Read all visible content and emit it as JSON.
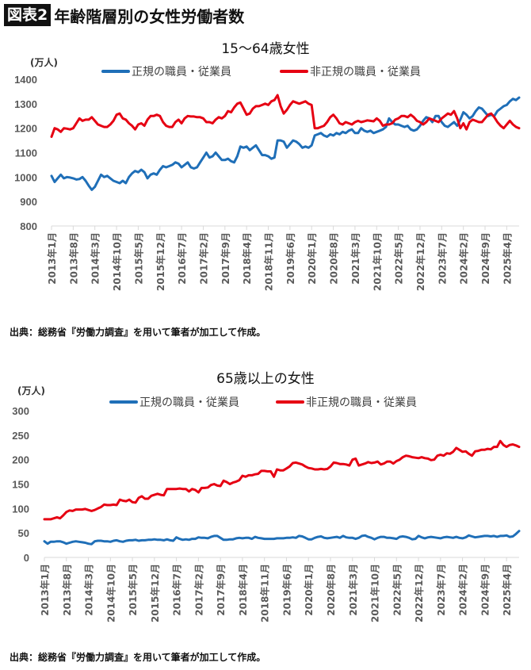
{
  "header": {
    "badge": "図表2",
    "title": "年齢階層別の女性労働者数"
  },
  "source_note": "出典：総務省『労働力調査』を用いて筆者が加工して作成。",
  "colors": {
    "regular": "#1f6fb8",
    "non_regular": "#e60012",
    "axis_text": "#595959"
  },
  "x_tick_labels": [
    "2013年1月",
    "2013年8月",
    "2014年3月",
    "2014年10月",
    "2015年5月",
    "2015年12月",
    "2016年7月",
    "2017年2月",
    "2017年9月",
    "2018年4月",
    "2018年11月",
    "2019年6月",
    "2020年1月",
    "2020年8月",
    "2021年3月",
    "2021年10月",
    "2022年5月",
    "2022年12月",
    "2023年7月",
    "2024年2月",
    "2024年9月",
    "2025年4月"
  ],
  "chart_data": [
    {
      "type": "line",
      "title": "15〜64歳女性",
      "ylabel": "(万人)",
      "x_start": "2013-01",
      "x_end": "2025-08",
      "x_step_months": 1,
      "ylim": [
        800,
        1400
      ],
      "yticks": [
        800,
        900,
        1000,
        1100,
        1200,
        1300,
        1400
      ],
      "grid": false,
      "legend": "top",
      "series": [
        {
          "name": "正規の職員・従業員",
          "color": "#1f6fb8",
          "values": [
            1005,
            980,
            995,
            1010,
            995,
            1000,
            998,
            995,
            990,
            992,
            1000,
            985,
            965,
            948,
            960,
            985,
            1010,
            1000,
            1005,
            995,
            985,
            980,
            975,
            985,
            975,
            1000,
            1015,
            1025,
            1020,
            1030,
            1020,
            995,
            1010,
            1015,
            1010,
            1030,
            1045,
            1040,
            1045,
            1050,
            1060,
            1055,
            1040,
            1050,
            1060,
            1040,
            1035,
            1040,
            1060,
            1080,
            1100,
            1080,
            1085,
            1100,
            1085,
            1070,
            1070,
            1075,
            1065,
            1060,
            1085,
            1125,
            1120,
            1125,
            1110,
            1120,
            1130,
            1110,
            1090,
            1090,
            1085,
            1075,
            1080,
            1150,
            1150,
            1145,
            1120,
            1135,
            1150,
            1145,
            1135,
            1120,
            1125,
            1120,
            1130,
            1170,
            1175,
            1180,
            1170,
            1165,
            1175,
            1170,
            1180,
            1175,
            1185,
            1180,
            1190,
            1195,
            1180,
            1180,
            1200,
            1190,
            1185,
            1190,
            1180,
            1185,
            1190,
            1195,
            1205,
            1240,
            1225,
            1215,
            1215,
            1210,
            1205,
            1210,
            1195,
            1190,
            1195,
            1210,
            1230,
            1245,
            1240,
            1225,
            1250,
            1250,
            1225,
            1210,
            1205,
            1215,
            1225,
            1210,
            1235,
            1265,
            1255,
            1240,
            1250,
            1270,
            1285,
            1280,
            1265,
            1250,
            1255,
            1250,
            1270,
            1280,
            1290,
            1295,
            1310,
            1320,
            1315,
            1325
          ]
        },
        {
          "name": "非正規の職員・従業員",
          "color": "#e60012",
          "values": [
            1165,
            1200,
            1195,
            1185,
            1200,
            1198,
            1195,
            1200,
            1220,
            1240,
            1230,
            1235,
            1235,
            1245,
            1230,
            1215,
            1210,
            1205,
            1205,
            1215,
            1230,
            1255,
            1260,
            1240,
            1235,
            1220,
            1210,
            1195,
            1215,
            1220,
            1210,
            1235,
            1250,
            1250,
            1255,
            1250,
            1225,
            1210,
            1205,
            1205,
            1225,
            1235,
            1220,
            1240,
            1250,
            1248,
            1248,
            1245,
            1245,
            1240,
            1225,
            1225,
            1220,
            1235,
            1245,
            1240,
            1250,
            1270,
            1265,
            1285,
            1300,
            1305,
            1280,
            1255,
            1260,
            1280,
            1290,
            1290,
            1295,
            1300,
            1295,
            1310,
            1315,
            1335,
            1290,
            1260,
            1275,
            1295,
            1310,
            1305,
            1300,
            1305,
            1310,
            1300,
            1295,
            1200,
            1200,
            1205,
            1210,
            1225,
            1245,
            1255,
            1240,
            1220,
            1215,
            1225,
            1220,
            1215,
            1225,
            1230,
            1225,
            1228,
            1232,
            1230,
            1228,
            1240,
            1230,
            1210,
            1215,
            1215,
            1220,
            1235,
            1240,
            1250,
            1250,
            1245,
            1255,
            1245,
            1230,
            1225,
            1215,
            1225,
            1240,
            1235,
            1230,
            1225,
            1240,
            1250,
            1260,
            1255,
            1270,
            1240,
            1200,
            1220,
            1195,
            1225,
            1235,
            1230,
            1225,
            1225,
            1240,
            1255,
            1260,
            1245,
            1225,
            1210,
            1200,
            1215,
            1230,
            1215,
            1205,
            1200
          ]
        }
      ]
    },
    {
      "type": "line",
      "title": "65歳以上の女性",
      "ylabel": "(万人)",
      "x_start": "2013-01",
      "x_end": "2025-08",
      "x_step_months": 1,
      "ylim": [
        0,
        300
      ],
      "yticks": [
        0,
        50,
        100,
        150,
        200,
        250,
        300
      ],
      "grid": false,
      "legend": "top",
      "series": [
        {
          "name": "正規の職員・従業員",
          "color": "#1f6fb8",
          "values": [
            33,
            28,
            32,
            32,
            33,
            33,
            31,
            28,
            30,
            32,
            33,
            32,
            31,
            30,
            28,
            27,
            33,
            34,
            34,
            33,
            33,
            32,
            34,
            35,
            33,
            32,
            34,
            35,
            35,
            36,
            34,
            35,
            35,
            36,
            36,
            37,
            36,
            36,
            35,
            37,
            35,
            34,
            41,
            38,
            36,
            37,
            36,
            38,
            38,
            41,
            40,
            40,
            39,
            42,
            44,
            44,
            40,
            36,
            36,
            37,
            37,
            39,
            40,
            39,
            40,
            40,
            38,
            42,
            40,
            39,
            38,
            38,
            38,
            38,
            39,
            39,
            39,
            40,
            40,
            41,
            40,
            44,
            43,
            40,
            37,
            37,
            40,
            42,
            43,
            40,
            39,
            40,
            41,
            42,
            40,
            44,
            41,
            40,
            40,
            38,
            40,
            44,
            45,
            42,
            40,
            37,
            40,
            42,
            42,
            40,
            40,
            39,
            38,
            42,
            43,
            42,
            40,
            37,
            38,
            44,
            41,
            39,
            41,
            42,
            41,
            40,
            39,
            41,
            42,
            41,
            40,
            42,
            40,
            39,
            41,
            45,
            43,
            41,
            42,
            43,
            44,
            44,
            43,
            44,
            42,
            44,
            44,
            45,
            42,
            43,
            48,
            54
          ]
        },
        {
          "name": "非正規の職員・従業員",
          "color": "#e60012",
          "values": [
            78,
            78,
            78,
            80,
            82,
            80,
            86,
            93,
            96,
            95,
            98,
            98,
            98,
            99,
            97,
            95,
            97,
            100,
            103,
            108,
            107,
            107,
            108,
            107,
            118,
            116,
            115,
            118,
            113,
            112,
            122,
            125,
            120,
            120,
            126,
            128,
            130,
            128,
            127,
            140,
            140,
            140,
            140,
            141,
            140,
            140,
            135,
            140,
            138,
            133,
            142,
            142,
            143,
            148,
            150,
            147,
            146,
            157,
            154,
            150,
            153,
            155,
            158,
            167,
            165,
            168,
            168,
            170,
            171,
            177,
            177,
            176,
            176,
            165,
            180,
            178,
            178,
            182,
            186,
            193,
            194,
            192,
            190,
            186,
            183,
            182,
            180,
            180,
            181,
            180,
            181,
            186,
            194,
            193,
            191,
            191,
            190,
            188,
            200,
            202,
            188,
            190,
            192,
            195,
            193,
            194,
            196,
            190,
            192,
            196,
            196,
            192,
            197,
            200,
            205,
            208,
            207,
            205,
            204,
            203,
            205,
            203,
            202,
            199,
            200,
            208,
            210,
            208,
            213,
            212,
            216,
            224,
            220,
            216,
            217,
            212,
            208,
            217,
            218,
            220,
            220,
            222,
            221,
            226,
            226,
            238,
            230,
            226,
            230,
            231,
            229,
            226
          ]
        }
      ]
    }
  ]
}
